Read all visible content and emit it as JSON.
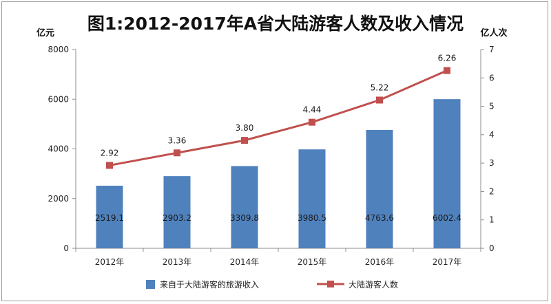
{
  "chart_data": {
    "type": "bar",
    "title": "图1:2012-2017年A省大陆游客人数及收入情况",
    "y_left_unit": "亿元",
    "y_right_unit": "亿人次",
    "categories": [
      "2012年",
      "2013年",
      "2014年",
      "2015年",
      "2016年",
      "2017年"
    ],
    "y_left_ticks": [
      "0",
      "2000",
      "4000",
      "6000",
      "8000"
    ],
    "y_right_ticks": [
      "0",
      "1",
      "2",
      "3",
      "4",
      "5",
      "6",
      "7"
    ],
    "ylim_left": [
      0,
      8000
    ],
    "ylim_right": [
      0,
      7
    ],
    "series": [
      {
        "name": "来自于大陆游客的旅游收入",
        "type": "bar",
        "axis": "left",
        "color": "#4f81bd",
        "values": [
          2519.1,
          2903.2,
          3309.8,
          3980.5,
          4763.6,
          6002.4
        ],
        "labels": [
          "2519.1",
          "2903.2",
          "3309.8",
          "3980.5",
          "4763.6",
          "6002.4"
        ]
      },
      {
        "name": "大陆游客人数",
        "type": "line",
        "axis": "right",
        "color": "#c0504d",
        "values": [
          2.92,
          3.36,
          3.8,
          4.44,
          5.22,
          6.26
        ],
        "labels": [
          "2.92",
          "3.36",
          "3.80",
          "4.44",
          "5.22",
          "6.26"
        ]
      }
    ],
    "grid": false,
    "legend": "bottom"
  }
}
